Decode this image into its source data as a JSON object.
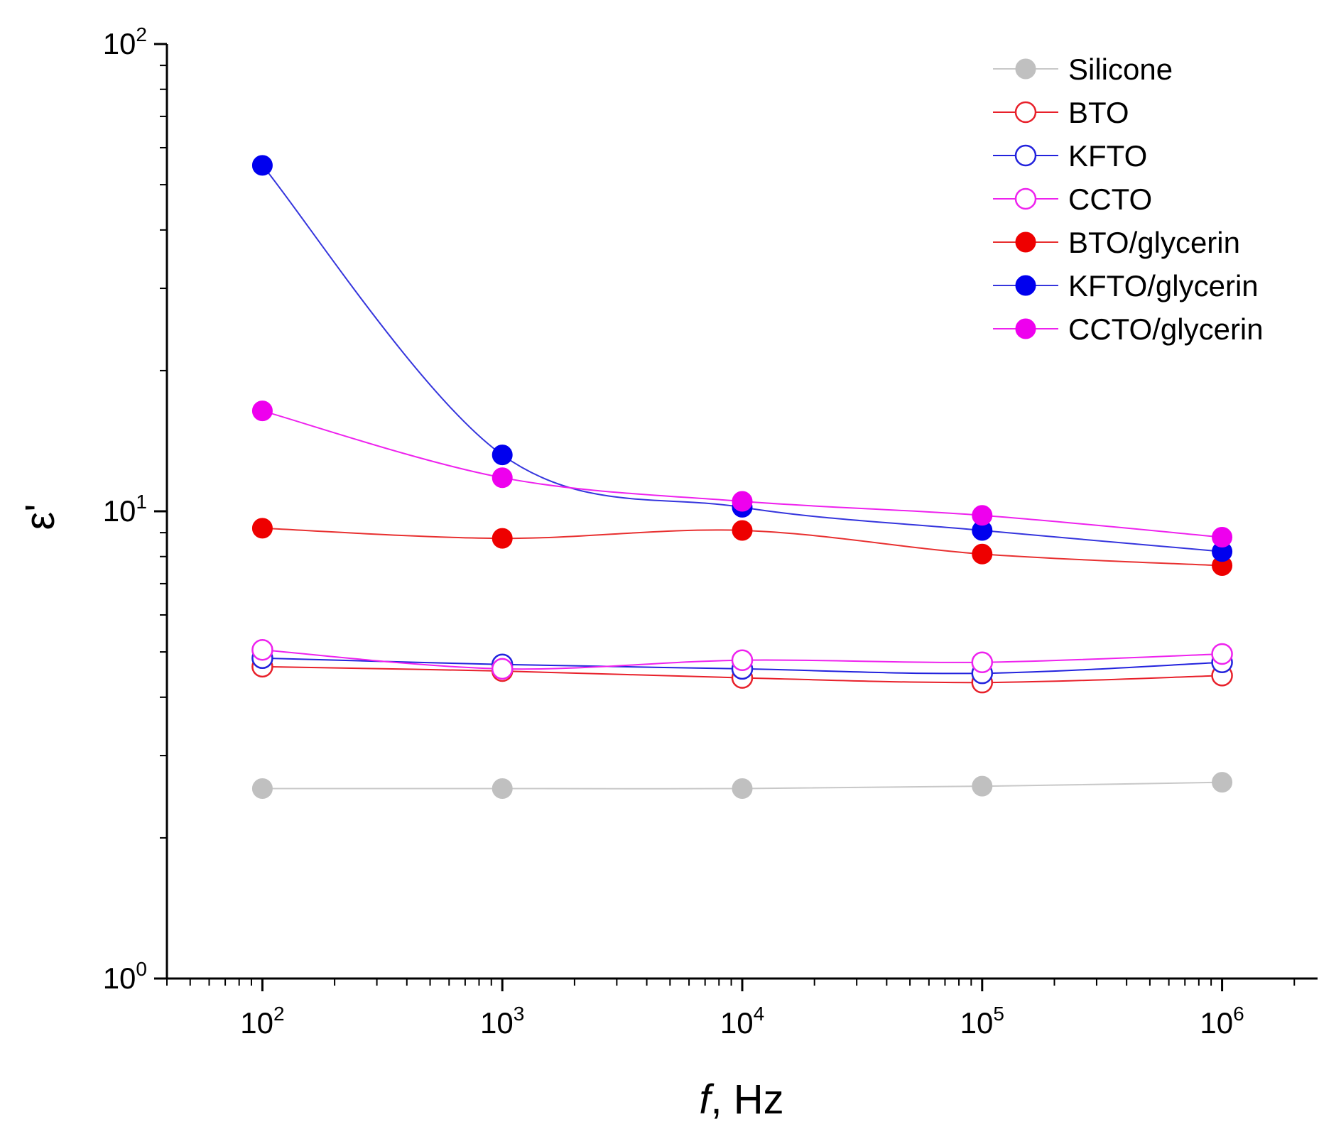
{
  "chart_data": {
    "type": "line",
    "xlabel": "f",
    "xlabel_unit": ", Hz",
    "ylabel": "ε'",
    "x_scale": "log",
    "y_scale": "log",
    "xlim": [
      40,
      2500000
    ],
    "ylim": [
      1,
      100
    ],
    "x_ticks": [
      {
        "value": 100,
        "base": "10",
        "exp": "2"
      },
      {
        "value": 1000,
        "base": "10",
        "exp": "3"
      },
      {
        "value": 10000,
        "base": "10",
        "exp": "4"
      },
      {
        "value": 100000,
        "base": "10",
        "exp": "5"
      },
      {
        "value": 1000000,
        "base": "10",
        "exp": "6"
      }
    ],
    "y_ticks": [
      {
        "value": 1,
        "base": "10",
        "exp": "0"
      },
      {
        "value": 10,
        "base": "10",
        "exp": "1"
      },
      {
        "value": 100,
        "base": "10",
        "exp": "2"
      }
    ],
    "grid": false,
    "legend_position": "top-right",
    "x": [
      100,
      1000,
      10000,
      100000,
      1000000
    ],
    "series": [
      {
        "name": "Silicone",
        "color": "#c0c0c0",
        "line_color": "#c8c8c8",
        "marker": "filled",
        "values": [
          2.55,
          2.55,
          2.55,
          2.58,
          2.63
        ]
      },
      {
        "name": "BTO",
        "color": "#e8202a",
        "line_color": "#e8202a",
        "marker": "open",
        "values": [
          4.65,
          4.55,
          4.4,
          4.3,
          4.45
        ]
      },
      {
        "name": "KFTO",
        "color": "#2222dd",
        "line_color": "#2222dd",
        "marker": "open",
        "values": [
          4.85,
          4.7,
          4.6,
          4.5,
          4.75
        ]
      },
      {
        "name": "CCTO",
        "color": "#ee22ee",
        "line_color": "#ee22ee",
        "marker": "open",
        "values": [
          5.05,
          4.6,
          4.8,
          4.75,
          4.95
        ]
      },
      {
        "name": "BTO/glycerin",
        "color": "#ee0000",
        "line_color": "#e83030",
        "marker": "filled",
        "values": [
          9.2,
          8.75,
          9.1,
          8.1,
          7.65
        ]
      },
      {
        "name": "KFTO/glycerin",
        "color": "#0000ee",
        "line_color": "#3535dd",
        "marker": "filled",
        "values": [
          55,
          13.2,
          10.2,
          9.1,
          8.2
        ]
      },
      {
        "name": "CCTO/glycerin",
        "color": "#ee00ee",
        "line_color": "#ee22ee",
        "marker": "filled",
        "values": [
          16.4,
          11.8,
          10.5,
          9.8,
          8.8
        ]
      }
    ]
  }
}
